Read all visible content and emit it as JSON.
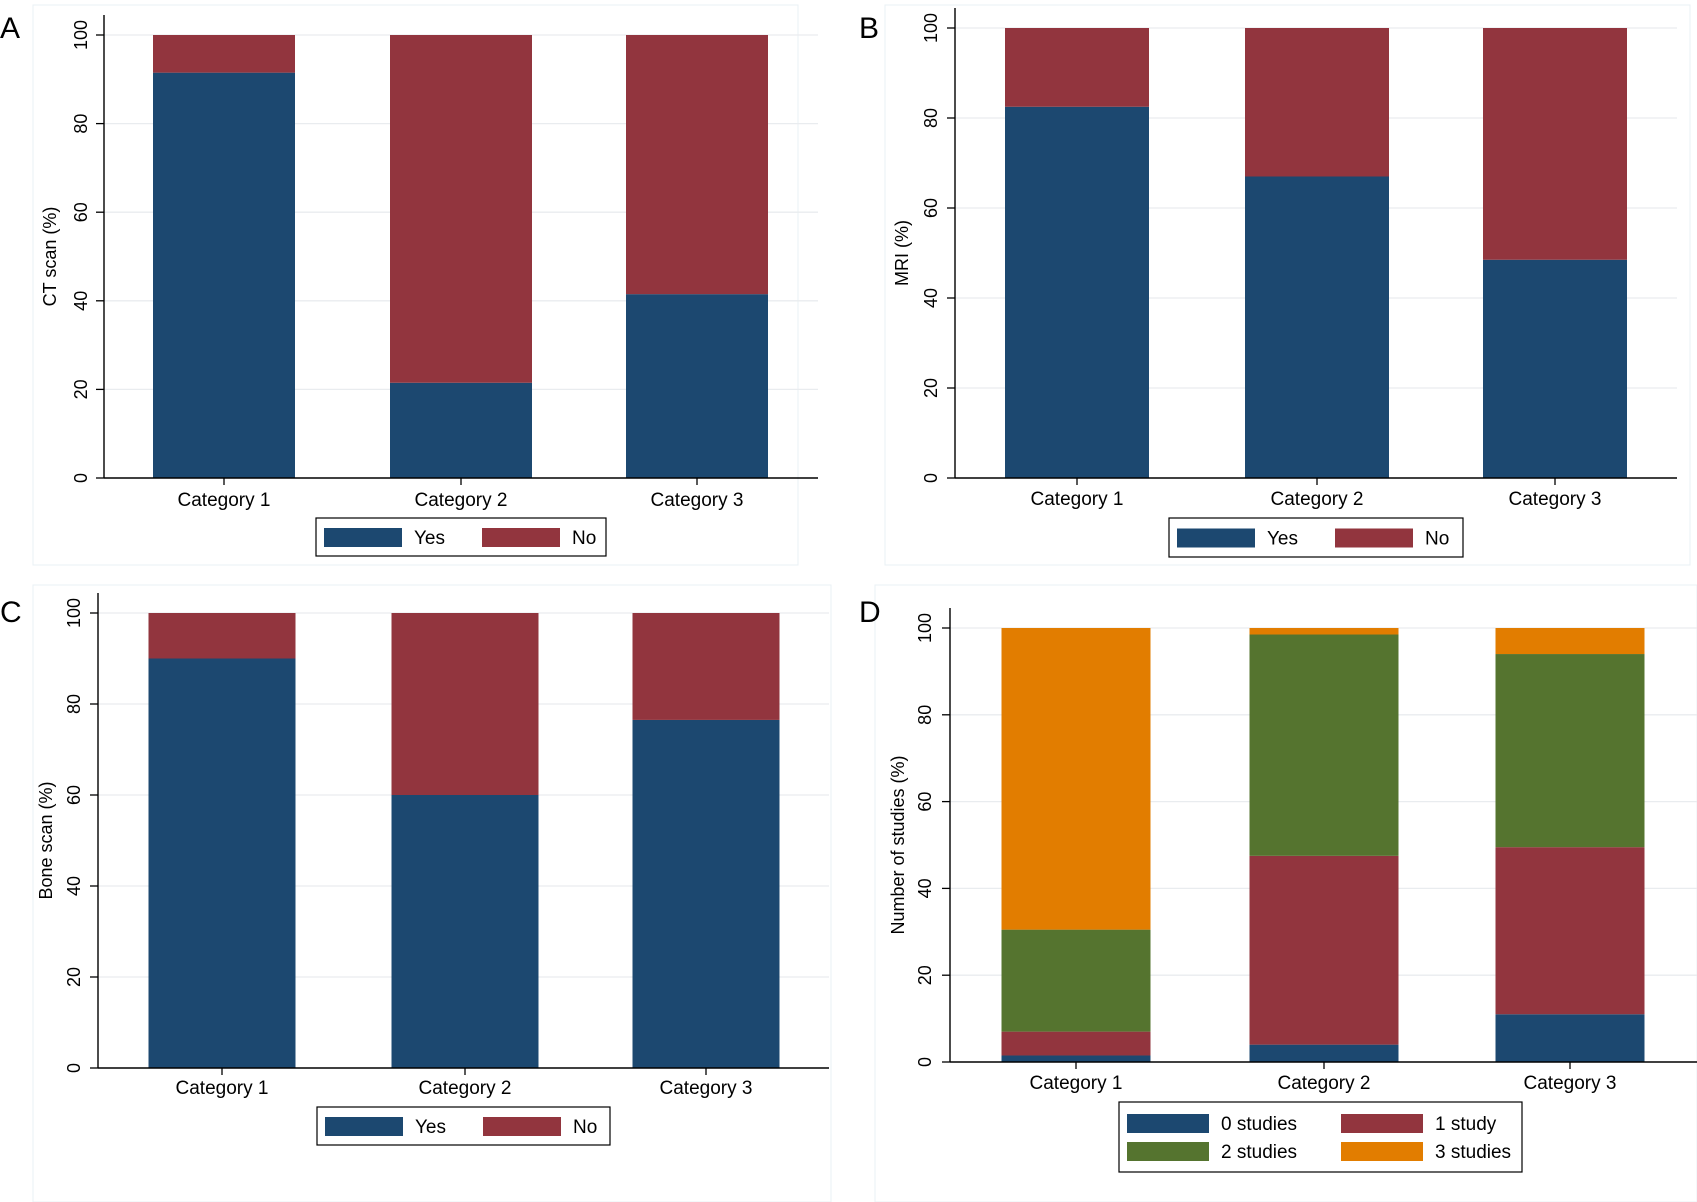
{
  "chart_data": [
    {
      "panel": "A",
      "type": "bar",
      "stacked": true,
      "ylabel": "CT scan (%)",
      "ylim": [
        0,
        100
      ],
      "yticks": [
        "0",
        "20",
        "40",
        "60",
        "80",
        "100"
      ],
      "categories": [
        "Category 1",
        "Category 2",
        "Category 3"
      ],
      "series": [
        {
          "name": "Yes",
          "color": "#1c4870",
          "values": [
            91.5,
            21.5,
            41.5
          ]
        },
        {
          "name": "No",
          "color": "#92353e",
          "values": [
            8.5,
            78.5,
            58.5
          ]
        }
      ],
      "legend": {
        "entries": [
          "Yes",
          "No"
        ]
      }
    },
    {
      "panel": "B",
      "type": "bar",
      "stacked": true,
      "ylabel": "MRI (%)",
      "ylim": [
        0,
        100
      ],
      "yticks": [
        "0",
        "20",
        "40",
        "60",
        "80",
        "100"
      ],
      "categories": [
        "Category 1",
        "Category 2",
        "Category 3"
      ],
      "series": [
        {
          "name": "Yes",
          "color": "#1c4870",
          "values": [
            82.5,
            67,
            48.5
          ]
        },
        {
          "name": "No",
          "color": "#92353e",
          "values": [
            17.5,
            33,
            51.5
          ]
        }
      ],
      "legend": {
        "entries": [
          "Yes",
          "No"
        ]
      }
    },
    {
      "panel": "C",
      "type": "bar",
      "stacked": true,
      "ylabel": "Bone scan (%)",
      "ylim": [
        0,
        100
      ],
      "yticks": [
        "0",
        "20",
        "40",
        "60",
        "80",
        "100"
      ],
      "categories": [
        "Category 1",
        "Category 2",
        "Category 3"
      ],
      "series": [
        {
          "name": "Yes",
          "color": "#1c4870",
          "values": [
            90,
            60,
            76.5
          ]
        },
        {
          "name": "No",
          "color": "#92353e",
          "values": [
            10,
            40,
            23.5
          ]
        }
      ],
      "legend": {
        "entries": [
          "Yes",
          "No"
        ]
      }
    },
    {
      "panel": "D",
      "type": "bar",
      "stacked": true,
      "ylabel": "Number of studies (%)",
      "ylim": [
        0,
        100
      ],
      "yticks": [
        "0",
        "20",
        "40",
        "60",
        "80",
        "100"
      ],
      "categories": [
        "Category 1",
        "Category 2",
        "Category 3"
      ],
      "series": [
        {
          "name": "0 studies",
          "color": "#1c4870",
          "values": [
            1.5,
            4,
            11
          ]
        },
        {
          "name": "1 study",
          "color": "#92353e",
          "values": [
            5.5,
            43.5,
            38.5
          ]
        },
        {
          "name": "2 studies",
          "color": "#55742f",
          "values": [
            23.5,
            51,
            44.5
          ]
        },
        {
          "name": "3 studies",
          "color": "#e27d00",
          "values": [
            69.5,
            1.5,
            6
          ]
        }
      ],
      "legend": {
        "entries": [
          "0 studies",
          "1 study",
          "2 studies",
          "3 studies"
        ]
      }
    }
  ],
  "colors": {
    "grid": "#e9ecef",
    "axis": "#000000",
    "frame": "#eaf0f4"
  }
}
